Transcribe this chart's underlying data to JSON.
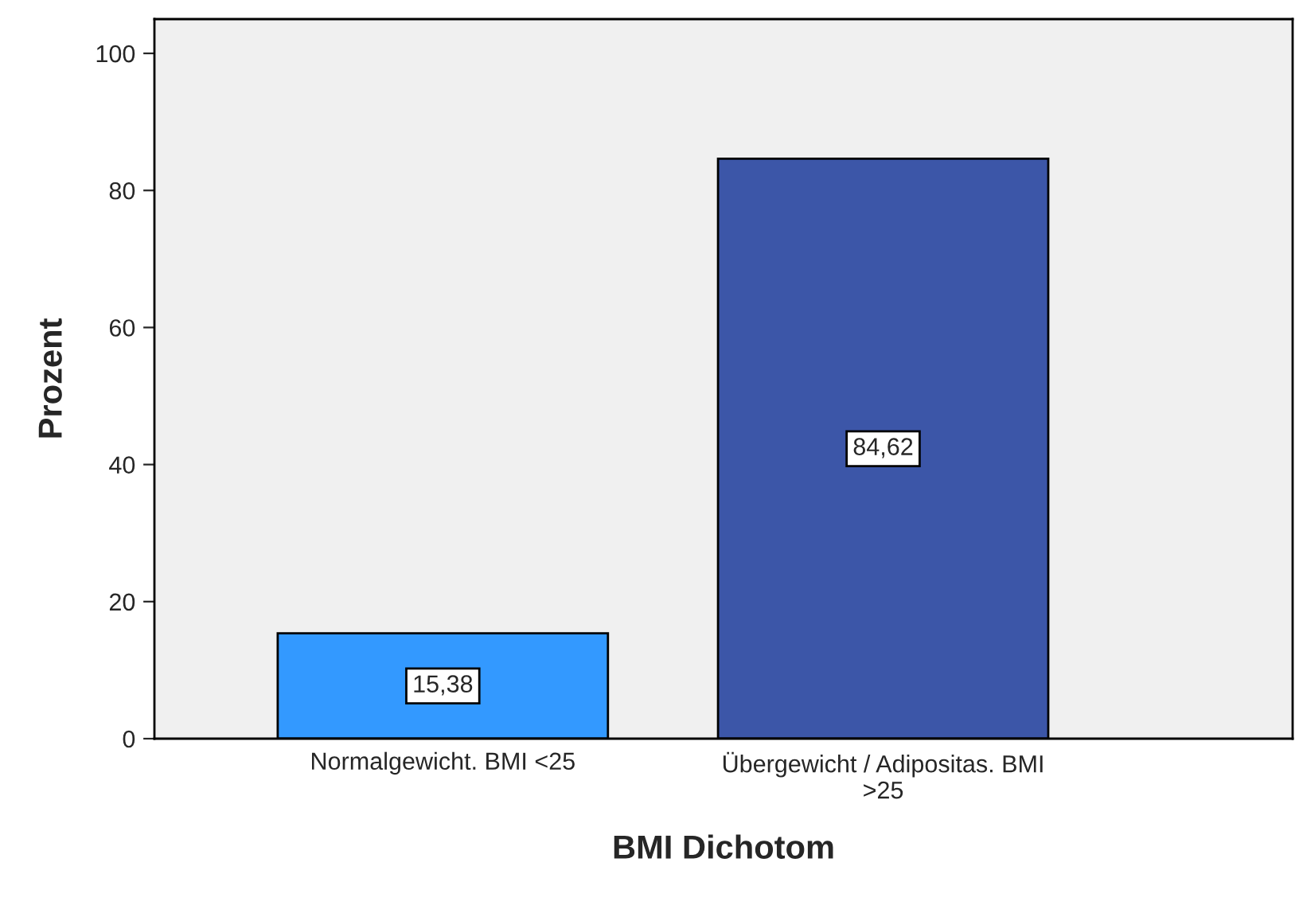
{
  "chart_data": {
    "type": "bar",
    "xlabel": "BMI Dichotom",
    "ylabel": "Prozent",
    "categories": [
      "Normalgewicht. BMI <25",
      "Übergewicht / Adipositas. BMI\n>25"
    ],
    "values": [
      15.38,
      84.62
    ],
    "colors": [
      "#3399ff",
      "#3c56a8"
    ],
    "value_labels": [
      "15,38",
      "84,62"
    ],
    "ylim": [
      0,
      105
    ],
    "yticks": [
      0,
      20,
      40,
      60,
      80,
      100
    ],
    "grid": false,
    "legend": false
  }
}
